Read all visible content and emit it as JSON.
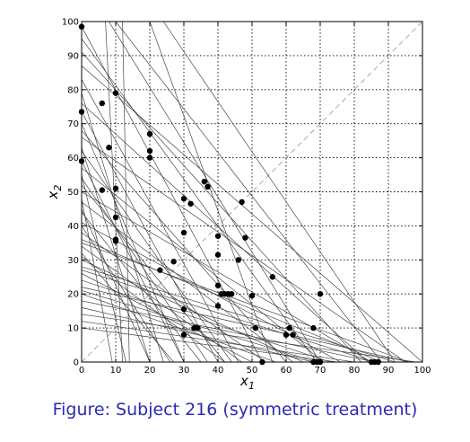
{
  "caption": "Figure: Subject 216 (symmetric treatment)",
  "chart_data": {
    "type": "scatter",
    "title": "",
    "xlabel": "x",
    "xlabel_sub": "1",
    "ylabel": "x",
    "ylabel_sub": "2",
    "xlim": [
      0,
      100
    ],
    "ylim": [
      0,
      100
    ],
    "xticks": [
      0,
      10,
      20,
      30,
      40,
      50,
      60,
      70,
      80,
      90,
      100
    ],
    "yticks": [
      0,
      10,
      20,
      30,
      40,
      50,
      60,
      70,
      80,
      90,
      100
    ],
    "grid": true,
    "diagonal": {
      "from": [
        0,
        0
      ],
      "to": [
        100,
        100
      ],
      "style": "dashed",
      "color": "#aaaaaa"
    },
    "points": [
      [
        0,
        98.5
      ],
      [
        0,
        73.5
      ],
      [
        0,
        59
      ],
      [
        6,
        50.5
      ],
      [
        6,
        76
      ],
      [
        8,
        63
      ],
      [
        10,
        79
      ],
      [
        10,
        51
      ],
      [
        10,
        42.5
      ],
      [
        10,
        36
      ],
      [
        10,
        35.5
      ],
      [
        20,
        67
      ],
      [
        20,
        62
      ],
      [
        20,
        60
      ],
      [
        23,
        27
      ],
      [
        27,
        29.5
      ],
      [
        30,
        48
      ],
      [
        30,
        38
      ],
      [
        30,
        15.5
      ],
      [
        30,
        8
      ],
      [
        32,
        46.5
      ],
      [
        33,
        10
      ],
      [
        34,
        10
      ],
      [
        36,
        53
      ],
      [
        37,
        51.5
      ],
      [
        40,
        37
      ],
      [
        40,
        31.5
      ],
      [
        40,
        22.5
      ],
      [
        40,
        16.5
      ],
      [
        41,
        20
      ],
      [
        42,
        20
      ],
      [
        43,
        20
      ],
      [
        44,
        20
      ],
      [
        46,
        30
      ],
      [
        47,
        47
      ],
      [
        48,
        36.5
      ],
      [
        50,
        19.5
      ],
      [
        51,
        10
      ],
      [
        53,
        0
      ],
      [
        56,
        25
      ],
      [
        60,
        8
      ],
      [
        61,
        10
      ],
      [
        62,
        8
      ],
      [
        68,
        10
      ],
      [
        68,
        0
      ],
      [
        69,
        0
      ],
      [
        70,
        20
      ],
      [
        70,
        0
      ],
      [
        85,
        0
      ],
      [
        86,
        0
      ],
      [
        87,
        0
      ]
    ],
    "budget_lines": [
      [
        0,
        98.5,
        53,
        0
      ],
      [
        0,
        73.5,
        40,
        0
      ],
      [
        0,
        59,
        30,
        0
      ],
      [
        0,
        91,
        82,
        0
      ],
      [
        0,
        83,
        46,
        0
      ],
      [
        0,
        76,
        84,
        0
      ],
      [
        0,
        70,
        30,
        0
      ],
      [
        0,
        66,
        95,
        0
      ],
      [
        0,
        63,
        20,
        0
      ],
      [
        0,
        57,
        71,
        0
      ],
      [
        0,
        52,
        42,
        0
      ],
      [
        0,
        50,
        85,
        0
      ],
      [
        0,
        47,
        62,
        0
      ],
      [
        0,
        44,
        35,
        0
      ],
      [
        0,
        41,
        76,
        0
      ],
      [
        0,
        38,
        54,
        0
      ],
      [
        0,
        36,
        88,
        0
      ],
      [
        0,
        34,
        47,
        0
      ],
      [
        0,
        32,
        27,
        0
      ],
      [
        0,
        30,
        65,
        0
      ],
      [
        0,
        28,
        92,
        0
      ],
      [
        0,
        26,
        50,
        0
      ],
      [
        0,
        24,
        73,
        0
      ],
      [
        0,
        22,
        96,
        0
      ],
      [
        0,
        20,
        57,
        0
      ],
      [
        0,
        18,
        86,
        0
      ],
      [
        0,
        16,
        68,
        0
      ],
      [
        0,
        14,
        98,
        0
      ],
      [
        0,
        12,
        80,
        0
      ],
      [
        0,
        10,
        75,
        0
      ],
      [
        10,
        100,
        88,
        0
      ],
      [
        8,
        100,
        70,
        0
      ],
      [
        7,
        100,
        12,
        0
      ],
      [
        12,
        100,
        14,
        0
      ],
      [
        20,
        100,
        56,
        0
      ],
      [
        24,
        100,
        92,
        0
      ],
      [
        0,
        55,
        13,
        0
      ],
      [
        0,
        79,
        24,
        0
      ],
      [
        0,
        48,
        9,
        0
      ],
      [
        0,
        95,
        69,
        0
      ],
      [
        0,
        68,
        60,
        0
      ],
      [
        0,
        87,
        100,
        0
      ],
      [
        0,
        62,
        44,
        0
      ],
      [
        0,
        45,
        20,
        0
      ],
      [
        0,
        54,
        37,
        0
      ],
      [
        0,
        40,
        26,
        0
      ],
      [
        0,
        35,
        96,
        0
      ],
      [
        0,
        31,
        42,
        0
      ],
      [
        0,
        27,
        86,
        0
      ],
      [
        0,
        21,
        69,
        0
      ]
    ]
  }
}
